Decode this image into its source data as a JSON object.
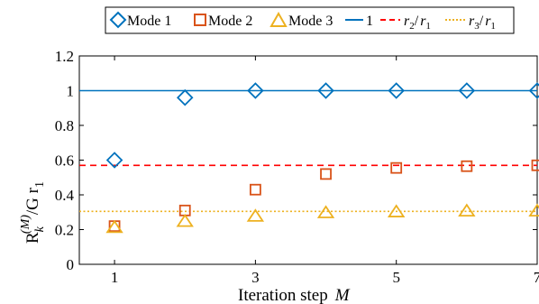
{
  "chart_data": {
    "type": "scatter",
    "title": "",
    "xlabel": "Iteration step",
    "xlabel_var": "M",
    "ylabel": {
      "base": "R",
      "sub": "k",
      "sup": "(M)",
      "rest": "/G r",
      "rest_sub": "1"
    },
    "xlim": [
      0.5,
      7
    ],
    "ylim": [
      0,
      1.2
    ],
    "x_ticks": [
      1,
      3,
      5,
      7
    ],
    "y_ticks": [
      0,
      0.2,
      0.4,
      0.6,
      0.8,
      1,
      1.2
    ],
    "x_tick_labels": [
      "1",
      "3",
      "5",
      "7"
    ],
    "y_tick_labels": [
      "0",
      "0.2",
      "0.4",
      "0.6",
      "0.8",
      "1",
      "1.2"
    ],
    "grid": false,
    "legend_position": "top-outside",
    "series": [
      {
        "name": "Mode 1",
        "marker": "diamond",
        "color": "#0072BD",
        "x": [
          1,
          2,
          3,
          4,
          5,
          6,
          7
        ],
        "y": [
          0.6,
          0.96,
          1.0,
          1.0,
          1.0,
          1.0,
          1.0
        ]
      },
      {
        "name": "Mode 2",
        "marker": "square",
        "color": "#D95319",
        "x": [
          1,
          2,
          3,
          4,
          5,
          6,
          7
        ],
        "y": [
          0.22,
          0.31,
          0.43,
          0.52,
          0.555,
          0.565,
          0.57
        ]
      },
      {
        "name": "Mode 3",
        "marker": "triangle",
        "color": "#EDB120",
        "x": [
          1,
          2,
          3,
          4,
          5,
          6,
          7
        ],
        "y": [
          0.21,
          0.245,
          0.275,
          0.295,
          0.3,
          0.305,
          0.305
        ]
      }
    ],
    "reference_lines": [
      {
        "name": "1",
        "label": {
          "base": "1"
        },
        "y": 1.0,
        "style": "solid",
        "color": "#0072BD"
      },
      {
        "name": "r2/r1",
        "label": {
          "a": "r",
          "a_sub": "2",
          "slash": "/",
          "b": "r",
          "b_sub": "1"
        },
        "y": 0.57,
        "style": "dashed",
        "color": "#FF0000"
      },
      {
        "name": "r3/r1",
        "label": {
          "a": "r",
          "a_sub": "3",
          "slash": "/",
          "b": "r",
          "b_sub": "1"
        },
        "y": 0.305,
        "style": "dotted",
        "color": "#EDB120"
      }
    ]
  }
}
